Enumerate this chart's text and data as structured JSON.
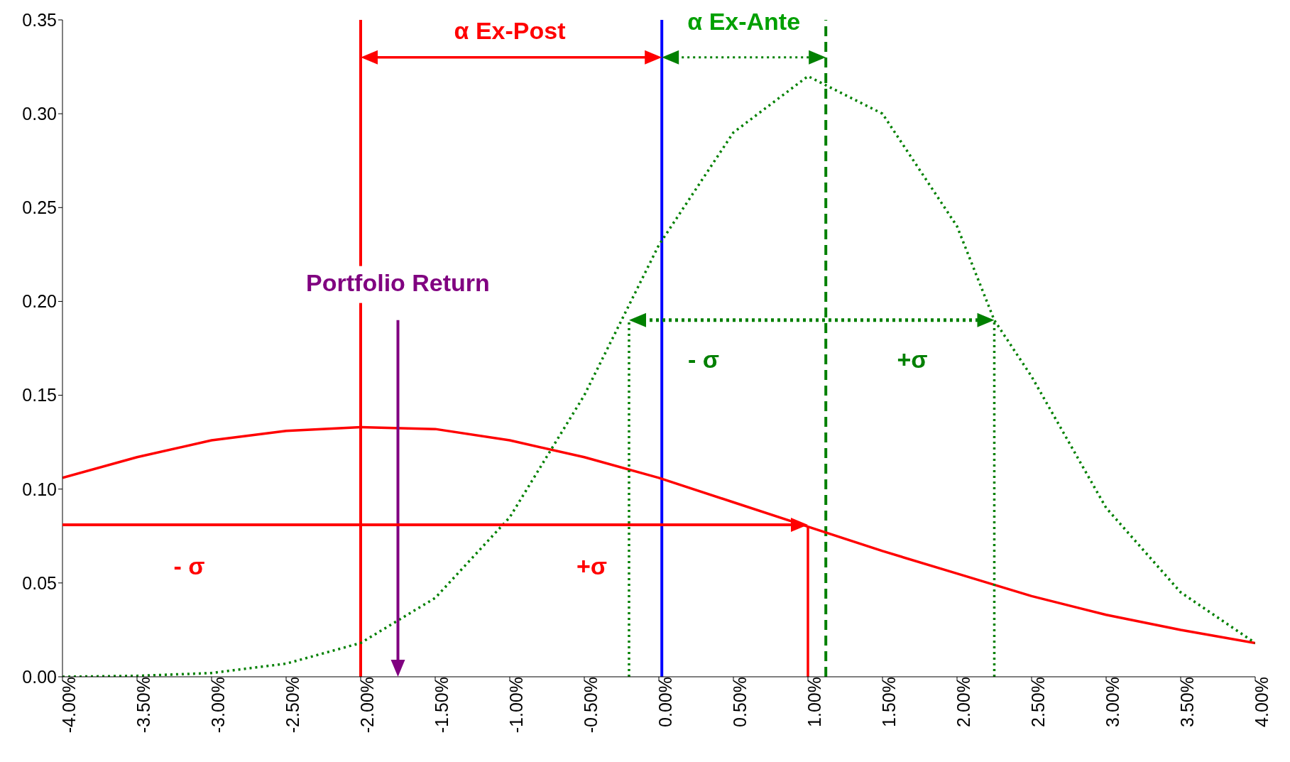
{
  "chart_data": {
    "type": "line",
    "xlim": [
      -4,
      4
    ],
    "ylim": [
      0,
      0.35
    ],
    "xticks": [
      {
        "value": -4,
        "label": "-4.00%"
      },
      {
        "value": -3.5,
        "label": "-3.50%"
      },
      {
        "value": -3,
        "label": "-3.00%"
      },
      {
        "value": -2.5,
        "label": "-2.50%"
      },
      {
        "value": -2,
        "label": "-2.00%"
      },
      {
        "value": -1.5,
        "label": "-1.50%"
      },
      {
        "value": -1,
        "label": "-1.00%"
      },
      {
        "value": -0.5,
        "label": "-0.50%"
      },
      {
        "value": 0,
        "label": "0.00%"
      },
      {
        "value": 0.5,
        "label": "0.50%"
      },
      {
        "value": 1,
        "label": "1.00%"
      },
      {
        "value": 1.5,
        "label": "1.50%"
      },
      {
        "value": 2,
        "label": "2.00%"
      },
      {
        "value": 2.5,
        "label": "2.50%"
      },
      {
        "value": 3,
        "label": "3.00%"
      },
      {
        "value": 3.5,
        "label": "3.50%"
      },
      {
        "value": 4,
        "label": "4.00%"
      }
    ],
    "yticks": [
      {
        "value": 0,
        "label": "0.00"
      },
      0.05,
      {
        "value": 0.1,
        "label": "0.10"
      },
      0.15,
      {
        "value": 0.2,
        "label": "0.20"
      },
      0.25,
      {
        "value": 0.3,
        "label": "0.30"
      },
      0.35
    ],
    "marker": "none",
    "series": [
      {
        "color": "#ff0000",
        "line_style": "solid",
        "x": [
          -4,
          -3.5,
          -3,
          -2.5,
          -2,
          -1.5,
          -1,
          -0.5,
          0,
          0.5,
          1,
          1.5,
          2,
          2.5,
          3,
          3.5,
          4
        ],
        "values": [
          0.106,
          0.117,
          0.126,
          0.131,
          0.133,
          0.132,
          0.126,
          0.117,
          0.106,
          0.093,
          0.08,
          0.067,
          0.055,
          0.043,
          0.033,
          0.025,
          0.018
        ]
      },
      {
        "color": "#008000",
        "line_style": "dotted",
        "x": [
          -4,
          -3.5,
          -3,
          -2.5,
          -2,
          -1.5,
          -1,
          -0.5,
          -0.25,
          0,
          0.5,
          1,
          1.5,
          2,
          2.25,
          2.5,
          3,
          3.5,
          4
        ],
        "values": [
          0,
          0.0005,
          0.002,
          0.007,
          0.018,
          0.042,
          0.085,
          0.15,
          0.19,
          0.23,
          0.29,
          0.32,
          0.3,
          0.24,
          0.19,
          0.16,
          0.09,
          0.045,
          0.018
        ]
      },
      {
        "color": "#ff0000",
        "line_style": "solid",
        "x": [
          1,
          1
        ],
        "values": [
          0,
          0.08
        ]
      },
      {
        "color": "#008000",
        "line_style": "dotted",
        "x": [
          -0.2,
          -0.2
        ],
        "values": [
          0,
          0.19
        ]
      },
      {
        "color": "#008000",
        "line_style": "dotted",
        "x": [
          2.25,
          2.25
        ],
        "values": [
          0,
          0.19
        ]
      }
    ],
    "ref_lines": [
      {
        "axis": "x",
        "value": -2,
        "color": "#ff0000",
        "line_style": "solid"
      },
      {
        "axis": "x",
        "value": 0.02,
        "color": "#0000ff",
        "line_style": "solid"
      },
      {
        "axis": "x",
        "value": 1.12,
        "color": "#008000",
        "line_style": "dashed"
      }
    ],
    "annotations": [
      "α  Ex-Post",
      "α Ex-Ante",
      "Portfolio Return",
      "- σ",
      "+σ",
      "- σ",
      "+σ"
    ]
  }
}
